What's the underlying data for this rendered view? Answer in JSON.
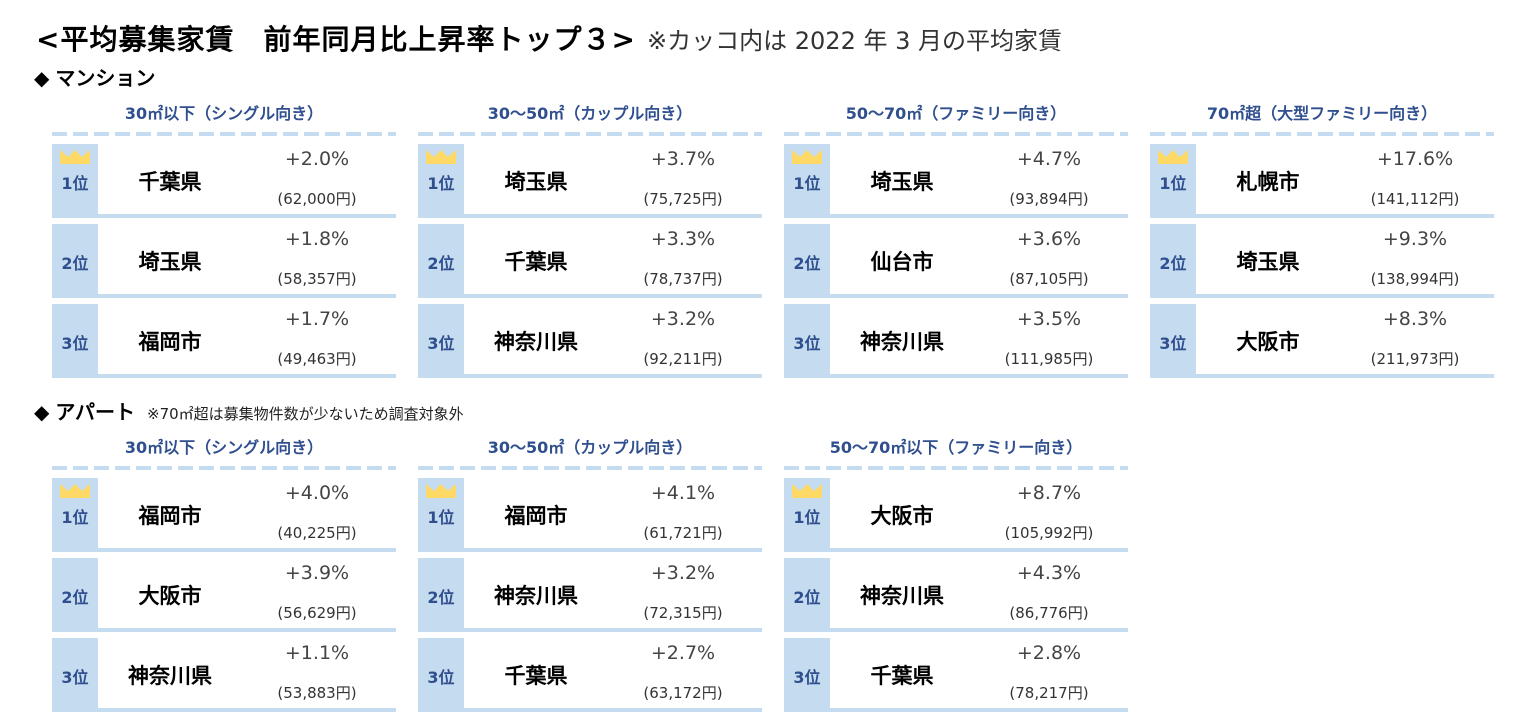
{
  "title": {
    "main": "<平均募集家賃　前年同月比上昇率トップ３>",
    "note": "※カッコ内は 2022 年 3 月の平均家賃"
  },
  "icons": {
    "section_marker": "◆",
    "crown": "crown-icon"
  },
  "colors": {
    "accent_light": "#c5dbef",
    "accent_text": "#2f4f8f",
    "crown": "#ffd966"
  },
  "sections": [
    {
      "label": "マンション",
      "note": "",
      "panels": [
        {
          "title": "30㎡以下（シングル向き）",
          "rows": [
            {
              "rank": "1位",
              "city": "千葉県",
              "pct": "+2.0%",
              "rent": "(62,000円)"
            },
            {
              "rank": "2位",
              "city": "埼玉県",
              "pct": "+1.8%",
              "rent": "(58,357円)"
            },
            {
              "rank": "3位",
              "city": "福岡市",
              "pct": "+1.7%",
              "rent": "(49,463円)"
            }
          ]
        },
        {
          "title": "30～50㎡（カップル向き）",
          "rows": [
            {
              "rank": "1位",
              "city": "埼玉県",
              "pct": "+3.7%",
              "rent": "(75,725円)"
            },
            {
              "rank": "2位",
              "city": "千葉県",
              "pct": "+3.3%",
              "rent": "(78,737円)"
            },
            {
              "rank": "3位",
              "city": "神奈川県",
              "pct": "+3.2%",
              "rent": "(92,211円)"
            }
          ]
        },
        {
          "title": "50～70㎡（ファミリー向き）",
          "rows": [
            {
              "rank": "1位",
              "city": "埼玉県",
              "pct": "+4.7%",
              "rent": "(93,894円)"
            },
            {
              "rank": "2位",
              "city": "仙台市",
              "pct": "+3.6%",
              "rent": "(87,105円)"
            },
            {
              "rank": "3位",
              "city": "神奈川県",
              "pct": "+3.5%",
              "rent": "(111,985円)"
            }
          ]
        },
        {
          "title": "70㎡超（大型ファミリー向き）",
          "rows": [
            {
              "rank": "1位",
              "city": "札幌市",
              "pct": "+17.6%",
              "rent": "(141,112円)"
            },
            {
              "rank": "2位",
              "city": "埼玉県",
              "pct": "+9.3%",
              "rent": "(138,994円)"
            },
            {
              "rank": "3位",
              "city": "大阪市",
              "pct": "+8.3%",
              "rent": "(211,973円)"
            }
          ]
        }
      ]
    },
    {
      "label": "アパート",
      "note": "※70㎡超は募集物件数が少ないため調査対象外",
      "panels": [
        {
          "title": "30㎡以下（シングル向き）",
          "rows": [
            {
              "rank": "1位",
              "city": "福岡市",
              "pct": "+4.0%",
              "rent": "(40,225円)"
            },
            {
              "rank": "2位",
              "city": "大阪市",
              "pct": "+3.9%",
              "rent": "(56,629円)"
            },
            {
              "rank": "3位",
              "city": "神奈川県",
              "pct": "+1.1%",
              "rent": "(53,883円)"
            }
          ]
        },
        {
          "title": "30～50㎡（カップル向き）",
          "rows": [
            {
              "rank": "1位",
              "city": "福岡市",
              "pct": "+4.1%",
              "rent": "(61,721円)"
            },
            {
              "rank": "2位",
              "city": "神奈川県",
              "pct": "+3.2%",
              "rent": "(72,315円)"
            },
            {
              "rank": "3位",
              "city": "千葉県",
              "pct": "+2.7%",
              "rent": "(63,172円)"
            }
          ]
        },
        {
          "title": "50～70㎡以下（ファミリー向き）",
          "rows": [
            {
              "rank": "1位",
              "city": "大阪市",
              "pct": "+8.7%",
              "rent": "(105,992円)"
            },
            {
              "rank": "2位",
              "city": "神奈川県",
              "pct": "+4.3%",
              "rent": "(86,776円)"
            },
            {
              "rank": "3位",
              "city": "千葉県",
              "pct": "+2.8%",
              "rent": "(78,217円)"
            }
          ]
        }
      ]
    }
  ]
}
